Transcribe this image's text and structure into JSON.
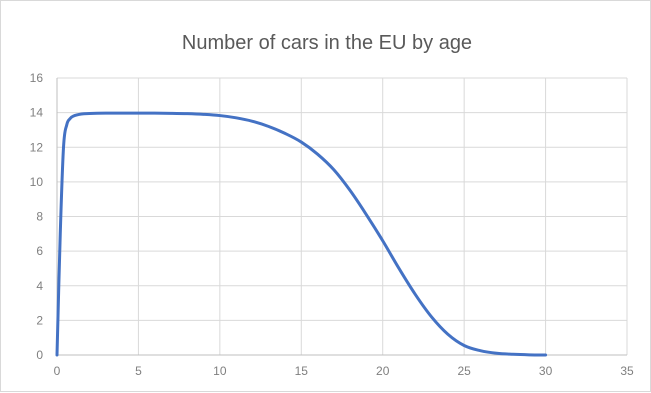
{
  "chart_data": {
    "type": "line",
    "title": "Number of cars in the EU by age",
    "xlabel": "",
    "ylabel": "",
    "xlim": [
      0,
      35
    ],
    "ylim": [
      0,
      16
    ],
    "x_ticks": [
      0,
      5,
      10,
      15,
      20,
      25,
      30,
      35
    ],
    "y_ticks": [
      0,
      2,
      4,
      6,
      8,
      10,
      12,
      14,
      16
    ],
    "grid": true,
    "legend": "none",
    "series": [
      {
        "color": "#4472c4",
        "points": [
          [
            0,
            0
          ],
          [
            0.2,
            7
          ],
          [
            0.4,
            12
          ],
          [
            0.6,
            13.3
          ],
          [
            0.8,
            13.65
          ],
          [
            1,
            13.8
          ],
          [
            1.5,
            13.92
          ],
          [
            2,
            13.95
          ],
          [
            3,
            13.97
          ],
          [
            4,
            13.97
          ],
          [
            5,
            13.97
          ],
          [
            6,
            13.97
          ],
          [
            7,
            13.96
          ],
          [
            8,
            13.94
          ],
          [
            9,
            13.9
          ],
          [
            10,
            13.83
          ],
          [
            11,
            13.7
          ],
          [
            12,
            13.5
          ],
          [
            13,
            13.2
          ],
          [
            14,
            12.8
          ],
          [
            15,
            12.3
          ],
          [
            16,
            11.6
          ],
          [
            17,
            10.7
          ],
          [
            18,
            9.5
          ],
          [
            19,
            8.1
          ],
          [
            20,
            6.6
          ],
          [
            21,
            5.0
          ],
          [
            22,
            3.5
          ],
          [
            23,
            2.2
          ],
          [
            24,
            1.2
          ],
          [
            25,
            0.55
          ],
          [
            26,
            0.25
          ],
          [
            27,
            0.1
          ],
          [
            28,
            0.04
          ],
          [
            29,
            0.01
          ],
          [
            30,
            0
          ]
        ]
      }
    ]
  }
}
